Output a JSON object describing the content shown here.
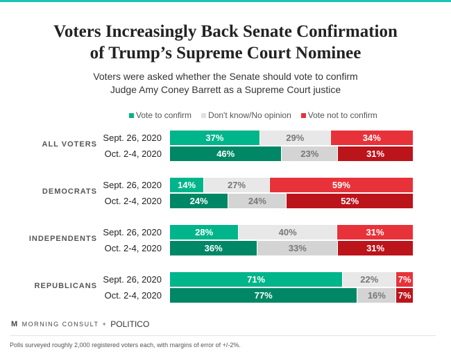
{
  "title_line1": "Voters Increasingly Back Senate Confirmation",
  "title_line2": "of Trump’s Supreme Court Nominee",
  "subtitle_line1": "Voters were asked whether the Senate should vote to confirm",
  "subtitle_line2": "Judge Amy Coney Barrett as a Supreme Court justice",
  "footer": {
    "brand1": "MORNING CONSULT",
    "plus": "+",
    "brand2": "POLITICO",
    "note": "Polls surveyed roughly 2,000 registered voters each, with margins of error of +/-2%."
  },
  "chart_data": {
    "type": "bar",
    "orientation": "horizontal",
    "stacked": true,
    "legend_position": "top",
    "series": [
      {
        "name": "Vote to confirm",
        "colors": [
          "#00b58a",
          "#008765"
        ]
      },
      {
        "name": "Don't know/No opinion",
        "colors": [
          "#e8e8e8",
          "#d4d4d4"
        ]
      },
      {
        "name": "Vote not to confirm",
        "colors": [
          "#e8323a",
          "#bb141b"
        ]
      }
    ],
    "groups": [
      {
        "label": "ALL VOTERS",
        "rows": [
          {
            "date": "Sept. 26, 2020",
            "values": [
              37,
              29,
              34
            ]
          },
          {
            "date": "Oct. 2-4, 2020",
            "values": [
              46,
              23,
              31
            ]
          }
        ]
      },
      {
        "label": "DEMOCRATS",
        "rows": [
          {
            "date": "Sept. 26, 2020",
            "values": [
              14,
              27,
              59
            ]
          },
          {
            "date": "Oct. 2-4, 2020",
            "values": [
              24,
              24,
              52
            ]
          }
        ]
      },
      {
        "label": "INDEPENDENTS",
        "rows": [
          {
            "date": "Sept. 26, 2020",
            "values": [
              28,
              40,
              31
            ]
          },
          {
            "date": "Oct. 2-4, 2020",
            "values": [
              36,
              33,
              31
            ]
          }
        ]
      },
      {
        "label": "REPUBLICANS",
        "rows": [
          {
            "date": "Sept. 26, 2020",
            "values": [
              71,
              22,
              7
            ]
          },
          {
            "date": "Oct. 2-4, 2020",
            "values": [
              77,
              16,
              7
            ]
          }
        ]
      }
    ]
  }
}
